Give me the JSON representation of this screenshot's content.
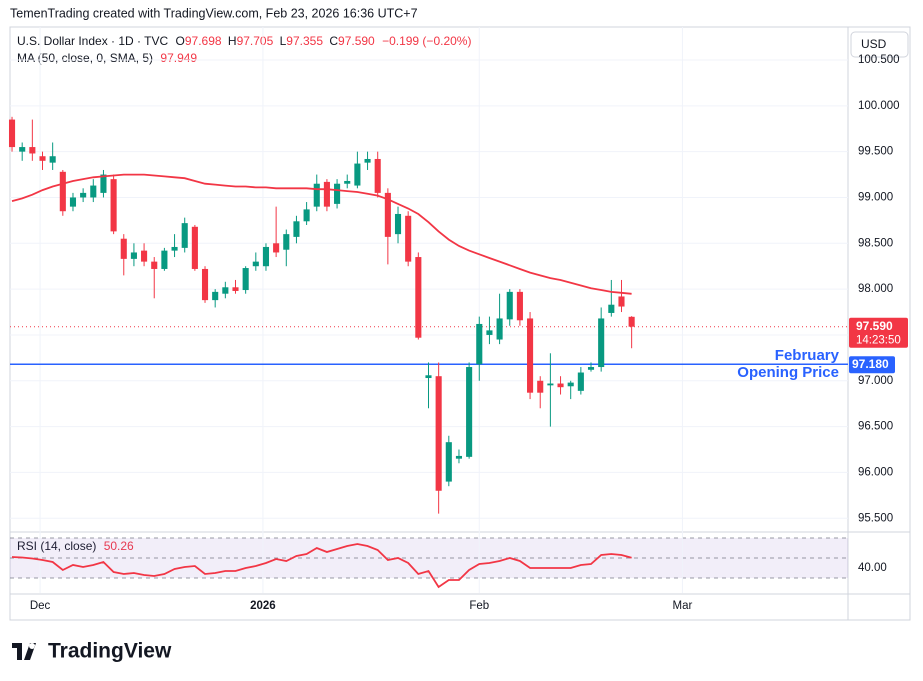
{
  "header": "TemenTrading created with TradingView.com, Feb 23, 2026 16:36 UTC+7",
  "chart_data": {
    "type": "candlestick",
    "title": "U.S. Dollar Index · 1D · TVC",
    "ohlc_legend": [
      {
        "label": "O",
        "value": "97.698"
      },
      {
        "label": "H",
        "value": "97.705"
      },
      {
        "label": "L",
        "value": "97.355"
      },
      {
        "label": "C",
        "value": "97.590"
      }
    ],
    "change": "−0.199 (−0.20%)",
    "currency": "USD",
    "up_color": "#089981",
    "down_color": "#f23645",
    "xlim": [
      -0.2,
      82.3
    ],
    "xticks": [
      {
        "value": 2.76,
        "label": "Dec"
      },
      {
        "value": 24.7,
        "label": "2026"
      },
      {
        "value": 46,
        "label": "Feb"
      },
      {
        "value": 66,
        "label": "Mar"
      }
    ],
    "ylim": [
      95.35,
      100.86
    ],
    "yticks": [
      {
        "value": 95.5,
        "label": "95.500"
      },
      {
        "value": 96,
        "label": "96.000"
      },
      {
        "value": 96.5,
        "label": "96.500"
      },
      {
        "value": 97,
        "label": "97.000"
      },
      {
        "value": 97.5,
        "label": "97.500"
      },
      {
        "value": 98,
        "label": "98.000"
      },
      {
        "value": 98.5,
        "label": "98.500"
      },
      {
        "value": 99,
        "label": "99.000"
      },
      {
        "value": 99.5,
        "label": "99.500"
      },
      {
        "value": 100,
        "label": "100.000"
      },
      {
        "value": 100.5,
        "label": "100.500"
      }
    ],
    "ohlc": [
      [
        99.85,
        99.88,
        99.5,
        99.55
      ],
      [
        99.5,
        99.6,
        99.4,
        99.55
      ],
      [
        99.55,
        99.85,
        99.4,
        99.48
      ],
      [
        99.45,
        99.5,
        99.3,
        99.4
      ],
      [
        99.38,
        99.6,
        99.3,
        99.45
      ],
      [
        99.28,
        99.3,
        98.8,
        98.85
      ],
      [
        98.9,
        99.05,
        98.85,
        99.0
      ],
      [
        99.0,
        99.1,
        98.95,
        99.05
      ],
      [
        99.0,
        99.2,
        98.95,
        99.13
      ],
      [
        99.05,
        99.3,
        99.0,
        99.25
      ],
      [
        99.2,
        99.25,
        98.6,
        98.63
      ],
      [
        98.55,
        98.6,
        98.15,
        98.33
      ],
      [
        98.33,
        98.5,
        98.25,
        98.4
      ],
      [
        98.42,
        98.5,
        98.25,
        98.3
      ],
      [
        98.3,
        98.35,
        97.9,
        98.22
      ],
      [
        98.22,
        98.45,
        98.2,
        98.42
      ],
      [
        98.42,
        98.6,
        98.35,
        98.46
      ],
      [
        98.45,
        98.78,
        98.4,
        98.72
      ],
      [
        98.68,
        98.7,
        98.2,
        98.22
      ],
      [
        98.22,
        98.25,
        97.85,
        97.88
      ],
      [
        97.88,
        98.0,
        97.8,
        97.97
      ],
      [
        97.95,
        98.08,
        97.9,
        98.02
      ],
      [
        98.02,
        98.1,
        97.95,
        97.98
      ],
      [
        97.99,
        98.25,
        97.95,
        98.23
      ],
      [
        98.25,
        98.4,
        98.2,
        98.3
      ],
      [
        98.25,
        98.5,
        98.2,
        98.46
      ],
      [
        98.5,
        98.9,
        98.35,
        98.4
      ],
      [
        98.43,
        98.65,
        98.25,
        98.6
      ],
      [
        98.57,
        98.8,
        98.5,
        98.74
      ],
      [
        98.74,
        98.95,
        98.7,
        98.87
      ],
      [
        98.9,
        99.25,
        98.85,
        99.15
      ],
      [
        99.17,
        99.2,
        98.85,
        98.9
      ],
      [
        98.93,
        99.2,
        98.88,
        99.15
      ],
      [
        99.15,
        99.25,
        99.1,
        99.18
      ],
      [
        99.13,
        99.5,
        99.1,
        99.37
      ],
      [
        99.38,
        99.5,
        99.3,
        99.42
      ],
      [
        99.42,
        99.5,
        99.0,
        99.05
      ],
      [
        99.05,
        99.1,
        98.27,
        98.57
      ],
      [
        98.6,
        98.9,
        98.5,
        98.82
      ],
      [
        98.8,
        98.85,
        98.25,
        98.3
      ],
      [
        98.35,
        98.4,
        97.45,
        97.47
      ],
      [
        97.03,
        97.2,
        96.7,
        97.06
      ],
      [
        97.05,
        97.2,
        95.55,
        95.8
      ],
      [
        95.9,
        96.4,
        95.85,
        96.33
      ],
      [
        96.15,
        96.25,
        96.1,
        96.18
      ],
      [
        96.17,
        97.2,
        96.15,
        97.15
      ],
      [
        97.18,
        97.7,
        97.0,
        97.62
      ],
      [
        97.5,
        97.7,
        97.4,
        97.55
      ],
      [
        97.45,
        97.95,
        97.4,
        97.68
      ],
      [
        97.67,
        98.0,
        97.6,
        97.97
      ],
      [
        97.97,
        98.0,
        97.6,
        97.66
      ],
      [
        97.68,
        97.75,
        96.8,
        96.87
      ],
      [
        97.0,
        97.05,
        96.7,
        96.87
      ],
      [
        96.95,
        97.3,
        96.5,
        96.97
      ],
      [
        96.97,
        97.05,
        96.85,
        96.93
      ],
      [
        96.94,
        97.0,
        96.8,
        96.98
      ],
      [
        96.89,
        97.15,
        96.85,
        97.09
      ],
      [
        97.12,
        97.2,
        97.1,
        97.15
      ],
      [
        97.15,
        97.8,
        97.1,
        97.68
      ],
      [
        97.74,
        98.1,
        97.7,
        97.83
      ],
      [
        97.92,
        98.1,
        97.75,
        97.81
      ],
      [
        97.698,
        97.705,
        97.355,
        97.59
      ]
    ],
    "ma": {
      "name": "MA (50, close, 0, SMA, 5)",
      "last_label": "97.949",
      "color": "#f23645",
      "values": [
        98.96,
        98.99,
        99.03,
        99.08,
        99.12,
        99.15,
        99.18,
        99.2,
        99.22,
        99.23,
        99.24,
        99.25,
        99.25,
        99.25,
        99.24,
        99.23,
        99.22,
        99.21,
        99.18,
        99.15,
        99.14,
        99.13,
        99.12,
        99.12,
        99.11,
        99.11,
        99.1,
        99.1,
        99.1,
        99.1,
        99.09,
        99.09,
        99.08,
        99.07,
        99.06,
        99.04,
        99.02,
        98.98,
        98.93,
        98.88,
        98.82,
        98.73,
        98.63,
        98.54,
        98.47,
        98.42,
        98.38,
        98.34,
        98.3,
        98.26,
        98.22,
        98.18,
        98.15,
        98.12,
        98.1,
        98.07,
        98.04,
        98.01,
        97.99,
        97.97,
        97.96,
        97.949
      ]
    },
    "last_price": {
      "value": 97.59,
      "label": "97.590",
      "countdown": "14:23:50",
      "color": "#f23645"
    },
    "level": {
      "value": 97.18,
      "label": "97.180",
      "color": "#2962ff",
      "annotation": [
        "February",
        "Opening Price"
      ]
    },
    "rsi": {
      "name": "RSI (14, close)",
      "last_label": "50.26",
      "color": "#f23645",
      "ylim": [
        15,
        73
      ],
      "yticks": [
        {
          "value": 40,
          "label": "40.00"
        }
      ],
      "bands": [
        30,
        50,
        70
      ],
      "values": [
        51,
        50.5,
        49.5,
        48,
        46,
        38,
        43,
        41,
        43,
        46,
        36,
        34,
        35,
        33,
        32,
        34,
        39,
        41,
        42,
        34,
        35,
        37,
        37,
        40,
        42,
        45,
        49,
        47,
        52,
        54,
        60,
        56,
        59,
        62,
        64,
        62,
        58,
        48,
        50,
        45,
        34,
        37,
        21,
        28,
        28,
        38,
        44,
        45,
        47,
        50,
        47,
        40,
        40,
        40,
        40,
        40,
        43,
        44,
        53,
        54,
        53,
        50.26
      ]
    }
  },
  "footer": "TradingView"
}
